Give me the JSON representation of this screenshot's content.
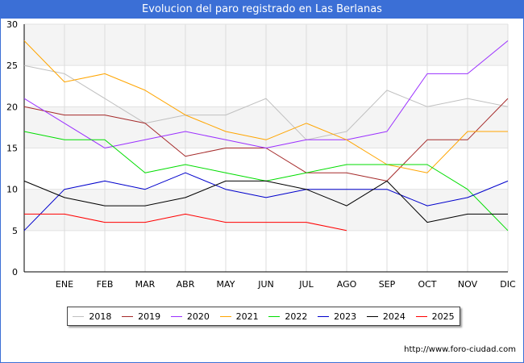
{
  "title": "Evolucion del paro registrado en Las Berlanas",
  "source": "http://www.foro-ciudad.com",
  "chart_data": {
    "type": "line",
    "title": "Evolucion del paro registrado en Las Berlanas",
    "categories": [
      "",
      "ENE",
      "FEB",
      "MAR",
      "ABR",
      "MAY",
      "JUN",
      "JUL",
      "AGO",
      "SEP",
      "OCT",
      "NOV",
      "DIC"
    ],
    "ylim": [
      0,
      30
    ],
    "yticks": [
      0,
      5,
      10,
      15,
      20,
      25,
      30
    ],
    "grid": "horizontal bands",
    "legend_position": "bottom",
    "series": [
      {
        "name": "2018",
        "color": "#c0c0c0",
        "values": [
          25,
          24,
          21,
          18,
          19,
          19,
          21,
          16,
          17,
          22,
          20,
          21,
          20
        ]
      },
      {
        "name": "2019",
        "color": "#a52a2a",
        "values": [
          20,
          19,
          19,
          18,
          14,
          15,
          15,
          12,
          12,
          11,
          16,
          16,
          21
        ]
      },
      {
        "name": "2020",
        "color": "#9b30ff",
        "values": [
          21,
          18,
          15,
          16,
          17,
          16,
          15,
          16,
          16,
          17,
          24,
          24,
          28
        ]
      },
      {
        "name": "2021",
        "color": "#ffa500",
        "values": [
          28,
          23,
          24,
          22,
          19,
          17,
          16,
          18,
          16,
          13,
          12,
          17,
          17
        ]
      },
      {
        "name": "2022",
        "color": "#00dd00",
        "values": [
          17,
          16,
          16,
          12,
          13,
          12,
          11,
          12,
          13,
          13,
          13,
          10,
          5
        ]
      },
      {
        "name": "2023",
        "color": "#0000cc",
        "values": [
          5,
          10,
          11,
          10,
          12,
          10,
          9,
          10,
          10,
          10,
          8,
          9,
          11
        ]
      },
      {
        "name": "2024",
        "color": "#000000",
        "values": [
          11,
          9,
          8,
          8,
          9,
          11,
          11,
          10,
          8,
          11,
          6,
          7,
          7
        ]
      },
      {
        "name": "2025",
        "color": "#ff0000",
        "values": [
          7,
          7,
          6,
          6,
          7,
          6,
          6,
          6,
          5,
          null,
          null,
          null,
          null
        ]
      }
    ]
  }
}
